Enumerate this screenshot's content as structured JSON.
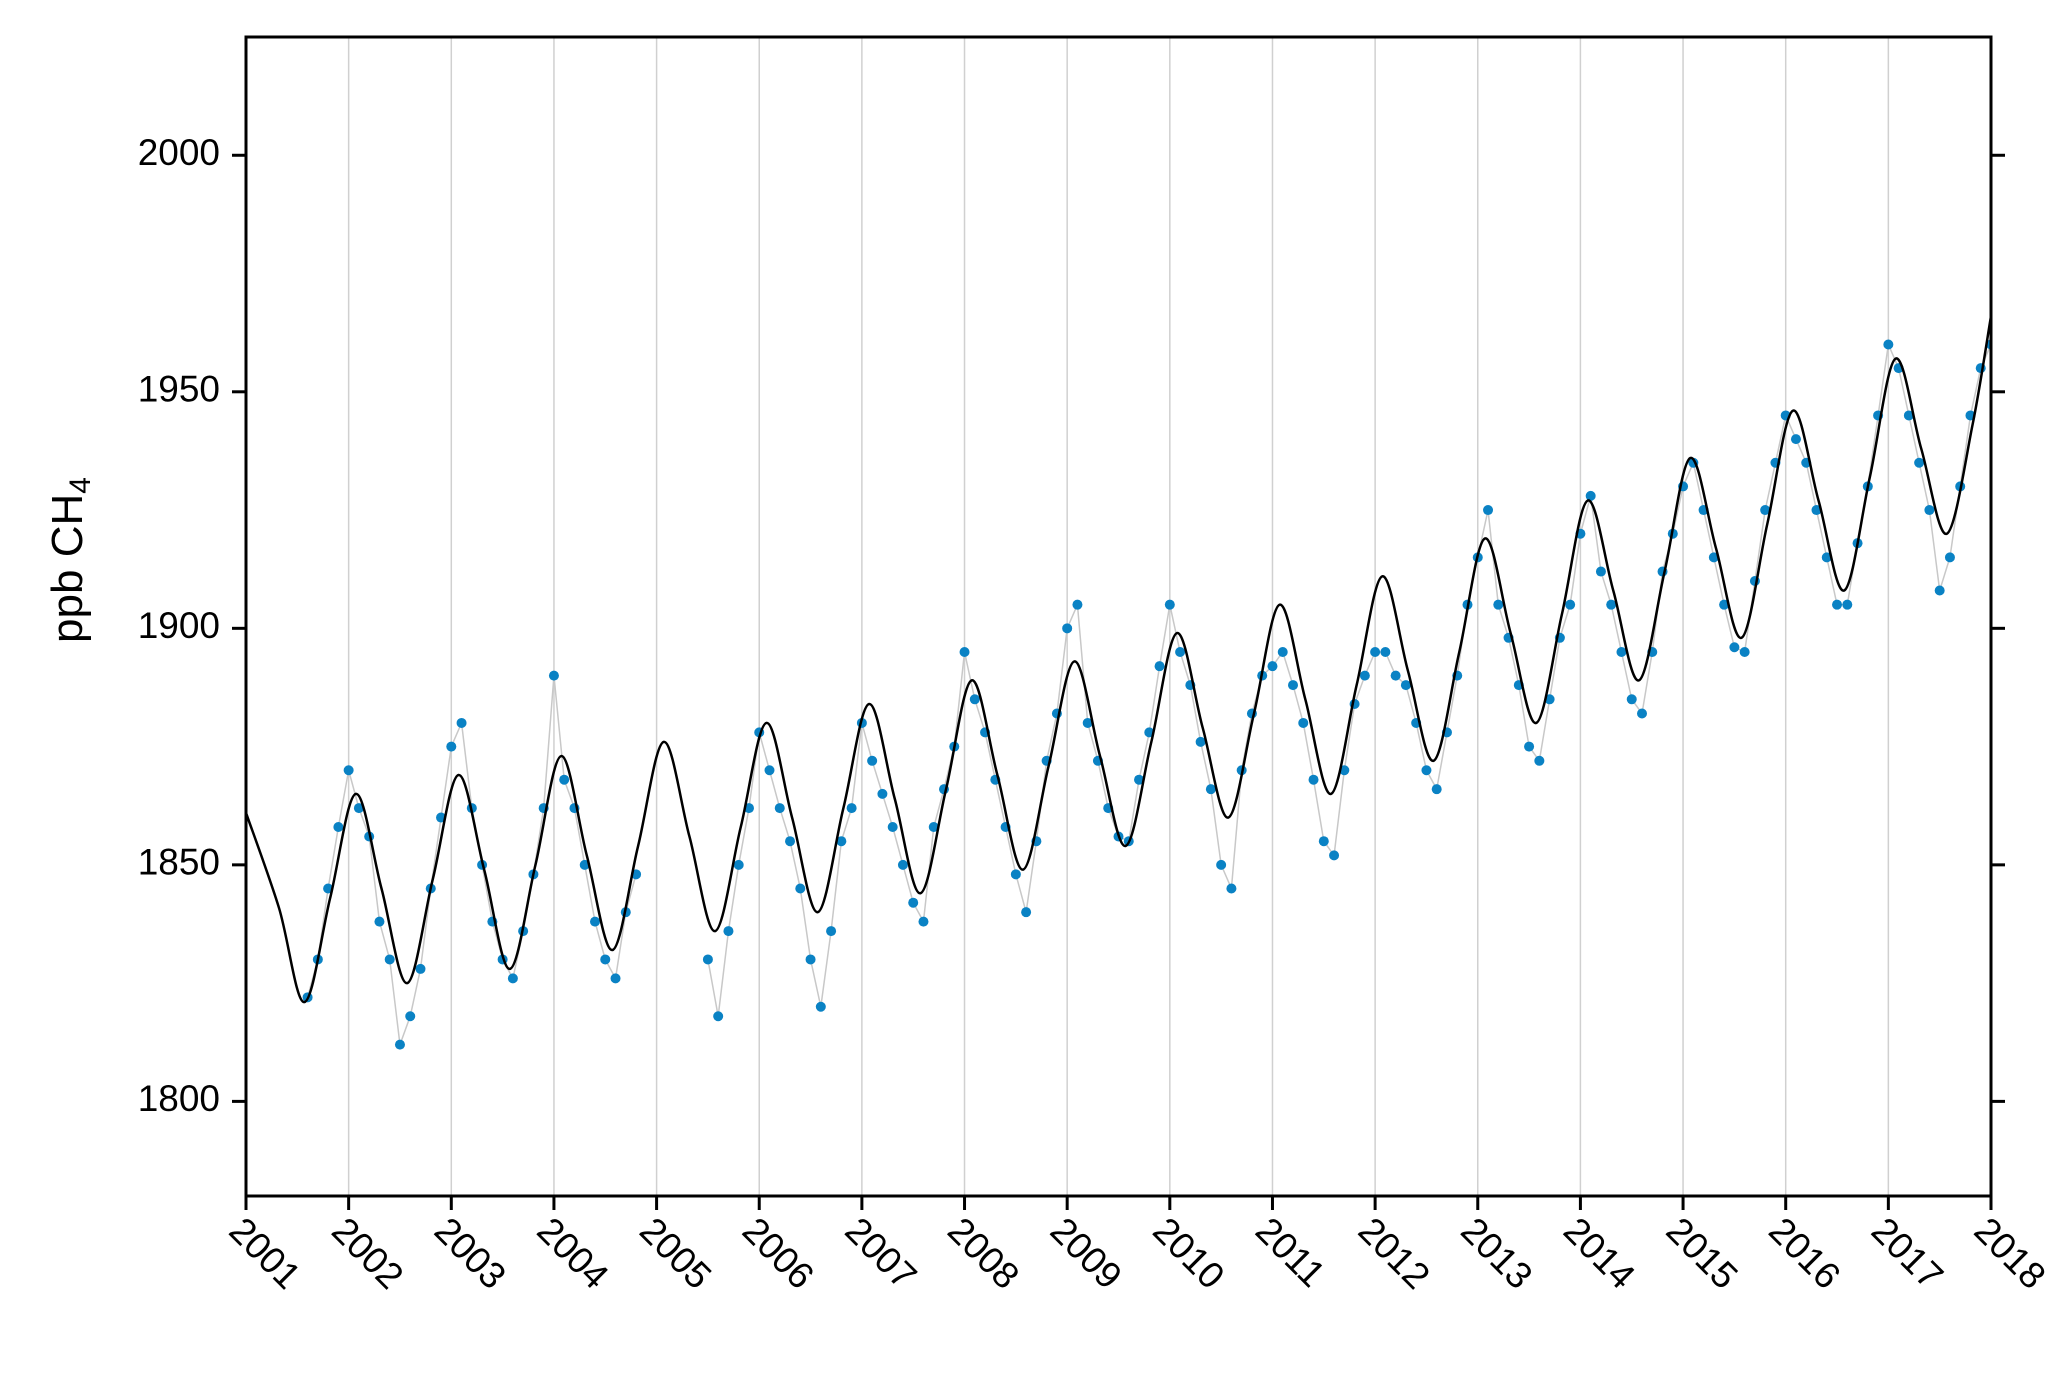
{
  "chart_data": {
    "type": "scatter",
    "ylabel": {
      "text": "ppb CH",
      "subscript": "4"
    },
    "xlim": [
      2001,
      2018
    ],
    "xticks": [
      2001,
      2002,
      2003,
      2004,
      2005,
      2006,
      2007,
      2008,
      2009,
      2010,
      2011,
      2012,
      2013,
      2014,
      2015,
      2016,
      2017,
      2018
    ],
    "ylim": [
      1780,
      2025
    ],
    "yticks": [
      1800,
      1850,
      1900,
      1950,
      2000
    ],
    "grid": "x",
    "series": [
      {
        "mode": "markers",
        "color": "#0a82c4",
        "line_color": "#c8c8c8",
        "x": [
          2001.6,
          2001.7,
          2001.8,
          2001.9,
          2002.0,
          2002.1,
          2002.2,
          2002.3,
          2002.4,
          2002.5,
          2002.6,
          2002.7,
          2002.8,
          2002.9,
          2003.0,
          2003.1,
          2003.2,
          2003.3,
          2003.4,
          2003.5,
          2003.6,
          2003.7,
          2003.8,
          2003.9,
          2004.0,
          2004.1,
          2004.2,
          2004.3,
          2004.4,
          2004.5,
          2004.6,
          2004.7,
          2004.8,
          2005.0,
          2005.5,
          2005.6,
          2005.7,
          2005.8,
          2005.9,
          2006.0,
          2006.1,
          2006.2,
          2006.3,
          2006.4,
          2006.5,
          2006.6,
          2006.7,
          2006.8,
          2006.9,
          2007.0,
          2007.1,
          2007.2,
          2007.3,
          2007.4,
          2007.5,
          2007.6,
          2007.7,
          2007.8,
          2007.9,
          2008.0,
          2008.1,
          2008.2,
          2008.3,
          2008.4,
          2008.5,
          2008.6,
          2008.7,
          2008.8,
          2008.9,
          2009.0,
          2009.1,
          2009.2,
          2009.3,
          2009.4,
          2009.5,
          2009.6,
          2009.7,
          2009.8,
          2009.9,
          2010.0,
          2010.1,
          2010.2,
          2010.3,
          2010.4,
          2010.5,
          2010.6,
          2010.7,
          2010.8,
          2010.9,
          2011.0,
          2011.1,
          2011.2,
          2011.3,
          2011.4,
          2011.5,
          2011.6,
          2011.7,
          2011.8,
          2011.9,
          2012.0,
          2012.1,
          2012.2,
          2012.3,
          2012.4,
          2012.5,
          2012.6,
          2012.7,
          2012.8,
          2012.9,
          2013.0,
          2013.1,
          2013.2,
          2013.3,
          2013.4,
          2013.5,
          2013.6,
          2013.7,
          2013.8,
          2013.9,
          2014.0,
          2014.1,
          2014.2,
          2014.3,
          2014.4,
          2014.5,
          2014.6,
          2014.7,
          2014.8,
          2014.9,
          2015.0,
          2015.1,
          2015.2,
          2015.3,
          2015.4,
          2015.5,
          2015.6,
          2015.7,
          2015.8,
          2015.9,
          2016.0,
          2016.1,
          2016.2,
          2016.3,
          2016.4,
          2016.5,
          2016.6,
          2016.7,
          2016.8,
          2016.9,
          2017.0,
          2017.1,
          2017.2,
          2017.3,
          2017.4,
          2017.5,
          2017.6,
          2017.7,
          2017.8,
          2017.9,
          2018.0
        ],
        "values": [
          1822,
          1830,
          1845,
          1858,
          1870,
          1862,
          1856,
          1838,
          1830,
          1812,
          1818,
          1828,
          1845,
          1860,
          1875,
          1880,
          1862,
          1850,
          1838,
          1830,
          1826,
          1836,
          1848,
          1862,
          1890,
          1868,
          1862,
          1850,
          1838,
          1830,
          1826,
          1840,
          1848,
          null,
          1830,
          1818,
          1836,
          1850,
          1862,
          1878,
          1870,
          1862,
          1855,
          1845,
          1830,
          1820,
          1836,
          1855,
          1862,
          1880,
          1872,
          1865,
          1858,
          1850,
          1842,
          1838,
          1858,
          1866,
          1875,
          1895,
          1885,
          1878,
          1868,
          1858,
          1848,
          1840,
          1855,
          1872,
          1882,
          1900,
          1905,
          1880,
          1872,
          1862,
          1856,
          1855,
          1868,
          1878,
          1892,
          1905,
          1895,
          1888,
          1876,
          1866,
          1850,
          1845,
          1870,
          1882,
          1890,
          1892,
          1895,
          1888,
          1880,
          1868,
          1855,
          1852,
          1870,
          1884,
          1890,
          1895,
          1895,
          1890,
          1888,
          1880,
          1870,
          1866,
          1878,
          1890,
          1905,
          1915,
          1925,
          1905,
          1898,
          1888,
          1875,
          1872,
          1885,
          1898,
          1905,
          1920,
          1928,
          1912,
          1905,
          1895,
          1885,
          1882,
          1895,
          1912,
          1920,
          1930,
          1935,
          1925,
          1915,
          1905,
          1896,
          1895,
          1910,
          1925,
          1935,
          1945,
          1940,
          1935,
          1925,
          1915,
          1905,
          1905,
          1918,
          1930,
          1945,
          1960,
          1955,
          1945,
          1935,
          1925,
          1908,
          1915,
          1930,
          1945,
          1955,
          1960
        ]
      },
      {
        "mode": "line",
        "color": "#000000",
        "x": [
          2001.0,
          2001.32,
          2001.57,
          2001.82,
          2002.07,
          2002.32,
          2002.57,
          2002.82,
          2003.07,
          2003.32,
          2003.57,
          2003.82,
          2004.07,
          2004.32,
          2004.57,
          2004.82,
          2005.07,
          2005.32,
          2005.57,
          2005.82,
          2006.07,
          2006.32,
          2006.57,
          2006.82,
          2007.07,
          2007.32,
          2007.57,
          2007.82,
          2008.07,
          2008.32,
          2008.57,
          2008.82,
          2009.07,
          2009.32,
          2009.57,
          2009.82,
          2010.07,
          2010.32,
          2010.57,
          2010.82,
          2011.07,
          2011.32,
          2011.57,
          2011.82,
          2012.07,
          2012.32,
          2012.57,
          2012.82,
          2013.07,
          2013.32,
          2013.57,
          2013.82,
          2014.07,
          2014.32,
          2014.57,
          2014.82,
          2015.07,
          2015.32,
          2015.57,
          2015.82,
          2016.07,
          2016.32,
          2016.57,
          2016.82,
          2017.07,
          2017.32,
          2017.57,
          2017.82,
          2018.0
        ],
        "values": [
          1861,
          1841,
          1821,
          1843,
          1865,
          1845,
          1825,
          1847,
          1869,
          1849,
          1828,
          1850,
          1873,
          1852,
          1832,
          1854,
          1876,
          1856,
          1836,
          1858,
          1880,
          1860,
          1840,
          1862,
          1884,
          1864,
          1844,
          1866,
          1889,
          1869,
          1849,
          1871,
          1893,
          1873,
          1854,
          1876,
          1899,
          1879,
          1860,
          1882,
          1905,
          1885,
          1865,
          1888,
          1911,
          1891,
          1872,
          1895,
          1919,
          1899,
          1880,
          1903,
          1927,
          1908,
          1889,
          1912,
          1936,
          1917,
          1898,
          1922,
          1946,
          1927,
          1908,
          1932,
          1957,
          1938,
          1920,
          1943,
          1966
        ]
      }
    ]
  }
}
